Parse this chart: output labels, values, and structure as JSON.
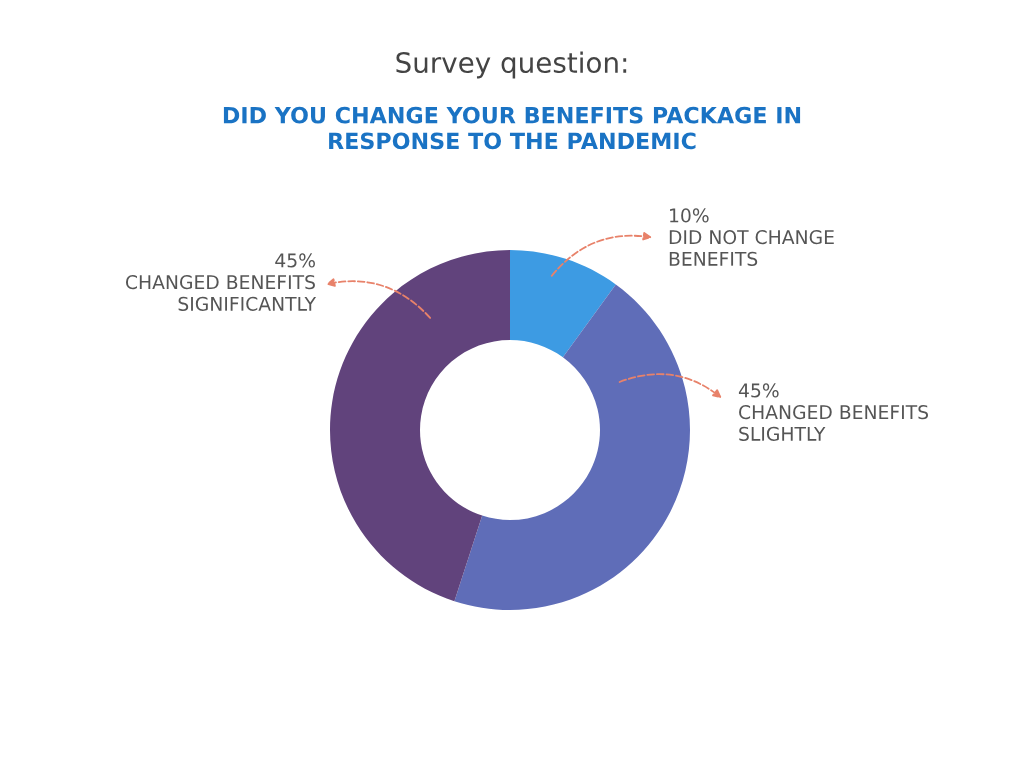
{
  "chart_data": {
    "type": "donut",
    "title": "Survey question:",
    "subtitle": "DID YOU CHANGE YOUR BENEFITS PACKAGE IN\nRESPONSE TO THE PANDEMIC",
    "categories": [
      "DID NOT CHANGE\nBENEFITS",
      "CHANGED BENEFITS\nSLIGHTLY",
      "CHANGED BENEFITS\nSIGNIFICANTLY"
    ],
    "values": [
      10,
      45,
      45
    ],
    "value_labels": [
      "10%",
      "45%",
      "45%"
    ],
    "colors": [
      "#3d9be3",
      "#5f6db8",
      "#61437c"
    ],
    "legend": false
  }
}
